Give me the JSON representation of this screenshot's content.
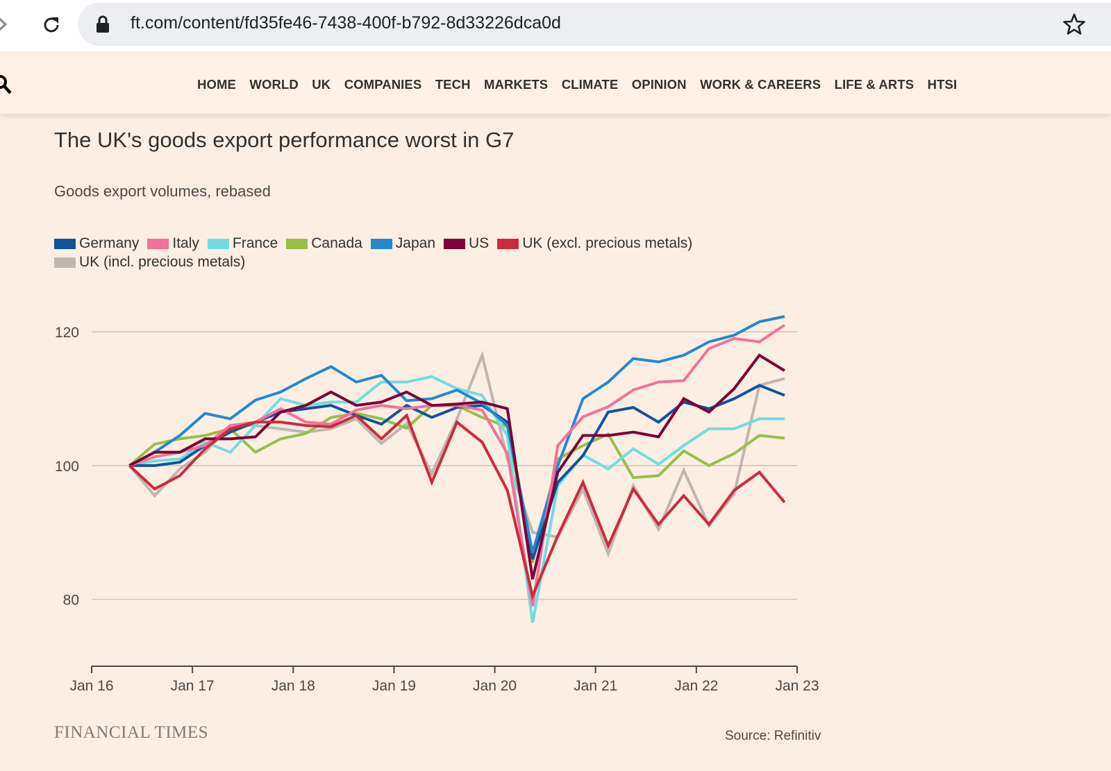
{
  "browser": {
    "url": "ft.com/content/fd35fe46-7438-400f-b792-8d33226dca0d",
    "icons": [
      "forward-arrow-icon",
      "reload-icon",
      "lock-icon",
      "star-icon"
    ]
  },
  "nav": {
    "items": [
      "HOME",
      "WORLD",
      "UK",
      "COMPANIES",
      "TECH",
      "MARKETS",
      "CLIMATE",
      "OPINION",
      "WORK & CAREERS",
      "LIFE & ARTS",
      "HTSI"
    ]
  },
  "chart_data": {
    "type": "line",
    "title": "The UK's goods export performance worst in G7",
    "subtitle": "Goods export volumes, rebased",
    "xlabel": "",
    "ylabel": "",
    "ylim": [
      70,
      125
    ],
    "yticks": [
      80,
      100,
      120
    ],
    "xlim": [
      2016.0,
      2023.0
    ],
    "xticks": [
      {
        "label": "Jan 16",
        "value": 2016.0
      },
      {
        "label": "Jan 17",
        "value": 2017.0
      },
      {
        "label": "Jan 18",
        "value": 2018.0
      },
      {
        "label": "Jan 19",
        "value": 2019.0
      },
      {
        "label": "Jan 20",
        "value": 2020.0
      },
      {
        "label": "Jan 21",
        "value": 2021.0
      },
      {
        "label": "Jan 22",
        "value": 2022.0
      },
      {
        "label": "Jan 23",
        "value": 2023.0
      }
    ],
    "x": [
      2016.375,
      2016.625,
      2016.875,
      2017.125,
      2017.375,
      2017.625,
      2017.875,
      2018.125,
      2018.375,
      2018.625,
      2018.875,
      2019.125,
      2019.375,
      2019.625,
      2019.875,
      2020.125,
      2020.375,
      2020.625,
      2020.875,
      2021.125,
      2021.375,
      2021.625,
      2021.875,
      2022.125,
      2022.375,
      2022.625,
      2022.875
    ],
    "series": [
      {
        "name": "Germany",
        "color": "#0f5499",
        "values": [
          100,
          100,
          100.5,
          103,
          105,
          106.5,
          108,
          108.5,
          109,
          107.5,
          106.2,
          109,
          107.2,
          108.7,
          109,
          106.5,
          86,
          97.5,
          101.5,
          108,
          108.7,
          106.5,
          109.5,
          108.5,
          110,
          112,
          110.5
        ]
      },
      {
        "name": "Italy",
        "color": "#f2729b",
        "values": [
          100,
          101.3,
          102,
          103,
          106,
          106.5,
          108.5,
          106.5,
          106.2,
          108.3,
          109,
          108.5,
          109,
          109,
          108.3,
          101.8,
          79,
          103,
          107.3,
          108.8,
          111.3,
          112.5,
          112.7,
          117.5,
          119,
          118.5,
          121
        ]
      },
      {
        "name": "France",
        "color": "#6ddde3",
        "values": [
          100,
          100.7,
          101,
          103.5,
          102,
          106,
          110,
          109,
          109.5,
          109.5,
          112.5,
          112.5,
          113.3,
          111.5,
          110.5,
          104.5,
          76.5,
          97,
          101.6,
          99.5,
          102.5,
          100.2,
          103,
          105.5,
          105.5,
          107,
          107
        ]
      },
      {
        "name": "Canada",
        "color": "#96bf4a",
        "values": [
          100,
          103.2,
          104,
          104.5,
          105.5,
          102,
          104,
          104.8,
          107.2,
          107.8,
          107,
          105.6,
          109,
          109,
          107.2,
          105.8,
          85.5,
          101,
          103,
          104.7,
          98.2,
          98.5,
          102.2,
          100,
          101.8,
          104.5,
          104.1
        ]
      },
      {
        "name": "Japan",
        "color": "#2289cf",
        "values": [
          100,
          102,
          104.5,
          107.8,
          107,
          109.8,
          111,
          113,
          114.8,
          112.5,
          113.5,
          109.7,
          110,
          111.3,
          109.3,
          106,
          87,
          100,
          110,
          112.5,
          116,
          115.5,
          116.5,
          118.5,
          119.5,
          121.5,
          122.3
        ]
      },
      {
        "name": "US",
        "color": "#7d0038",
        "values": [
          100,
          102,
          102,
          104,
          104,
          104.3,
          108,
          109,
          111,
          109,
          109.5,
          111,
          109,
          109.2,
          109.5,
          108.5,
          83,
          99,
          104.5,
          104.5,
          105,
          104.3,
          110,
          108,
          111.5,
          116.5,
          114.2
        ]
      },
      {
        "name": "UK (excl. precious metals)",
        "color": "#cc2b3d",
        "values": [
          100,
          96.5,
          98.5,
          102.5,
          105.5,
          106.5,
          106.5,
          106,
          105.8,
          107.5,
          104,
          107.5,
          97.5,
          106.5,
          103.5,
          96.3,
          80.5,
          89.5,
          97.5,
          88,
          96.5,
          91.2,
          95.5,
          91.2,
          96.3,
          99,
          94.5
        ]
      },
      {
        "name": "UK (incl. precious metals)",
        "color": "#bfb6b0",
        "values": [
          100,
          95.5,
          99.5,
          102,
          106,
          106,
          105.5,
          105,
          105.5,
          107,
          103.3,
          106.3,
          98.8,
          107,
          116.5,
          101,
          90,
          89.3,
          96.5,
          86.8,
          97,
          90.5,
          99.3,
          91,
          95.8,
          112,
          113
        ]
      }
    ]
  },
  "legend_rows": [
    [
      0,
      1,
      2,
      3,
      4,
      5,
      6
    ],
    [
      7
    ]
  ],
  "footer": {
    "logo": "FINANCIAL TIMES",
    "source": "Source: Refinitiv"
  }
}
